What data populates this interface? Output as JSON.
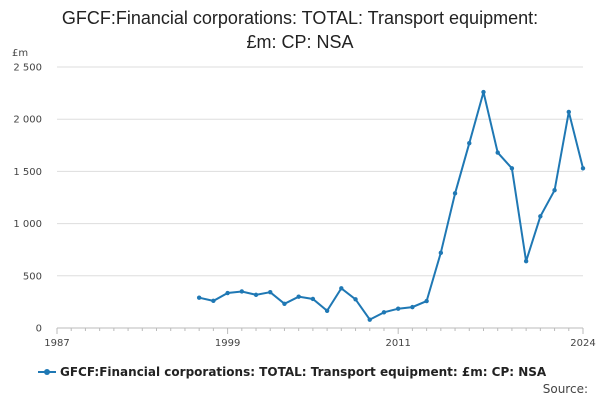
{
  "chart_data": {
    "type": "line",
    "title_lines": [
      "GFCF:Financial corporations: TOTAL: Transport equipment:",
      "£m: CP: NSA"
    ],
    "ylabel": "£m",
    "xlabel": "",
    "ylim": [
      0,
      2500
    ],
    "xlim": [
      1987,
      2024
    ],
    "y_ticks": [
      0,
      500,
      1000,
      1500,
      2000,
      2500
    ],
    "y_tick_labels": [
      "0",
      "500",
      "1 000",
      "1 500",
      "2 000",
      "2 500"
    ],
    "x_ticks": [
      1987,
      1999,
      2011,
      2024
    ],
    "x_tick_labels": [
      "1987",
      "1999",
      "2011",
      "2024"
    ],
    "grid": "horizontal",
    "legend_position": "bottom",
    "series": [
      {
        "name": "GFCF:Financial corporations: TOTAL: Transport equipment: £m: CP: NSA",
        "color": "#1f78b4",
        "x": [
          1997,
          1998,
          1999,
          2000,
          2001,
          2002,
          2003,
          2004,
          2005,
          2006,
          2007,
          2008,
          2009,
          2010,
          2011,
          2012,
          2013,
          2014,
          2015,
          2016,
          2017,
          2018,
          2019,
          2020,
          2021,
          2022,
          2023,
          2024
        ],
        "values": [
          290,
          260,
          335,
          350,
          318,
          343,
          232,
          300,
          278,
          165,
          380,
          275,
          80,
          150,
          185,
          200,
          258,
          720,
          1290,
          1770,
          2260,
          1680,
          1530,
          640,
          1070,
          1320,
          2070,
          1530
        ]
      }
    ]
  },
  "source_label": "Source:"
}
